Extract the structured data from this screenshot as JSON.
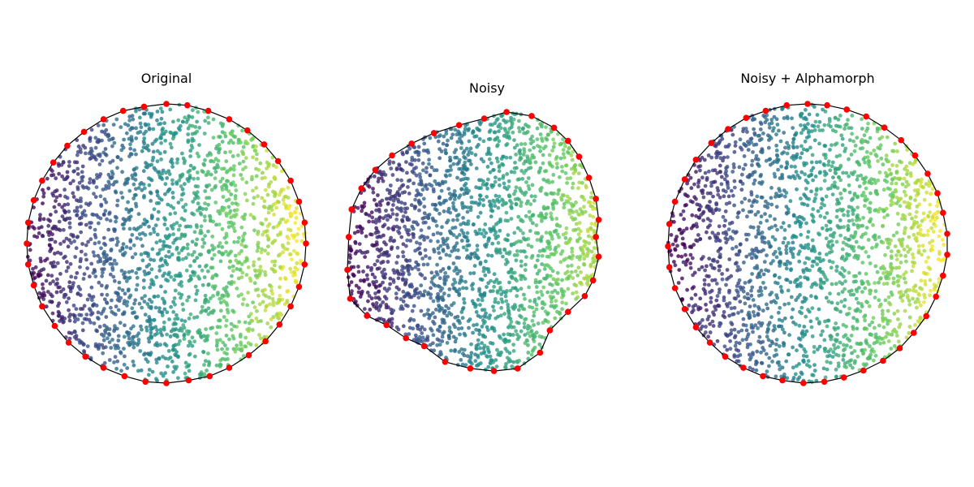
{
  "figure": {
    "colormap": "viridis",
    "colormap_stops": [
      "#440154",
      "#3b528b",
      "#21918c",
      "#5ec962",
      "#fde725"
    ],
    "hull_color": "#000000",
    "vertex_color": "#ff0000",
    "background": "#ffffff"
  },
  "chart_data": [
    {
      "type": "scatter",
      "title": "Original",
      "axes_visible": false,
      "color_by": "x",
      "point_count": 2000,
      "x_range": [
        -1,
        1
      ],
      "y_range": [
        -1,
        1
      ],
      "shape": "disk",
      "boundary": "convex-hull polygon with red vertices",
      "hull_vertices": [
        [
          0.0,
          1.0
        ],
        [
          0.15,
          0.99
        ],
        [
          0.3,
          0.95
        ],
        [
          0.45,
          0.89
        ],
        [
          0.58,
          0.81
        ],
        [
          0.7,
          0.71
        ],
        [
          0.8,
          0.59
        ],
        [
          0.89,
          0.45
        ],
        [
          0.95,
          0.3
        ],
        [
          0.99,
          0.15
        ],
        [
          1.0,
          0.0
        ],
        [
          0.99,
          -0.15
        ],
        [
          0.95,
          -0.31
        ],
        [
          0.89,
          -0.45
        ],
        [
          0.81,
          -0.58
        ],
        [
          0.71,
          -0.7
        ],
        [
          0.59,
          -0.8
        ],
        [
          0.45,
          -0.89
        ],
        [
          0.31,
          -0.95
        ],
        [
          0.16,
          -0.98
        ],
        [
          0.0,
          -1.0
        ],
        [
          -0.15,
          -0.99
        ],
        [
          -0.3,
          -0.95
        ],
        [
          -0.45,
          -0.89
        ],
        [
          -0.58,
          -0.81
        ],
        [
          -0.7,
          -0.71
        ],
        [
          -0.8,
          -0.59
        ],
        [
          -0.89,
          -0.45
        ],
        [
          -0.95,
          -0.3
        ],
        [
          -0.99,
          -0.15
        ],
        [
          -1.0,
          0.0
        ],
        [
          -0.99,
          0.15
        ],
        [
          -0.95,
          0.31
        ],
        [
          -0.89,
          0.45
        ],
        [
          -0.81,
          0.58
        ],
        [
          -0.71,
          0.7
        ],
        [
          -0.59,
          0.8
        ],
        [
          -0.45,
          0.89
        ],
        [
          -0.31,
          0.95
        ],
        [
          -0.16,
          0.98
        ]
      ]
    },
    {
      "type": "scatter",
      "title": "Noisy",
      "axes_visible": false,
      "color_by": "x",
      "point_count": 2000,
      "x_range": [
        -1,
        1
      ],
      "y_range": [
        -1,
        1
      ],
      "shape": "distorted disk",
      "boundary": "convex-hull polygon with red vertices",
      "hull_vertices": [
        [
          0.14,
          1.0
        ],
        [
          0.32,
          0.97
        ],
        [
          0.48,
          0.88
        ],
        [
          0.58,
          0.78
        ],
        [
          0.66,
          0.66
        ],
        [
          0.73,
          0.5
        ],
        [
          0.78,
          0.34
        ],
        [
          0.8,
          0.18
        ],
        [
          0.78,
          0.05
        ],
        [
          0.8,
          -0.1
        ],
        [
          0.76,
          -0.28
        ],
        [
          0.7,
          -0.4
        ],
        [
          0.58,
          -0.52
        ],
        [
          0.45,
          -0.66
        ],
        [
          0.38,
          -0.83
        ],
        [
          0.22,
          -0.95
        ],
        [
          0.05,
          -0.97
        ],
        [
          -0.12,
          -0.95
        ],
        [
          -0.3,
          -0.9
        ],
        [
          -0.45,
          -0.78
        ],
        [
          -0.58,
          -0.72
        ],
        [
          -0.72,
          -0.62
        ],
        [
          -0.86,
          -0.55
        ],
        [
          -0.98,
          -0.42
        ],
        [
          -1.0,
          -0.2
        ],
        [
          -0.99,
          0.05
        ],
        [
          -0.97,
          0.26
        ],
        [
          -0.9,
          0.42
        ],
        [
          -0.8,
          0.56
        ],
        [
          -0.68,
          0.67
        ],
        [
          -0.54,
          0.76
        ],
        [
          -0.38,
          0.84
        ],
        [
          -0.2,
          0.9
        ],
        [
          -0.02,
          0.95
        ]
      ]
    },
    {
      "type": "scatter",
      "title": "Noisy + Alphamorph",
      "axes_visible": false,
      "color_by": "x",
      "point_count": 2000,
      "x_range": [
        -1,
        1
      ],
      "y_range": [
        -1,
        1
      ],
      "shape": "disk",
      "boundary": "convex-hull polygon with red vertices",
      "hull_vertices": [
        [
          0.0,
          1.0
        ],
        [
          0.14,
          0.99
        ],
        [
          0.28,
          0.96
        ],
        [
          0.42,
          0.91
        ],
        [
          0.55,
          0.83
        ],
        [
          0.67,
          0.74
        ],
        [
          0.77,
          0.63
        ],
        [
          0.86,
          0.5
        ],
        [
          0.93,
          0.36
        ],
        [
          0.97,
          0.22
        ],
        [
          1.0,
          0.07
        ],
        [
          1.0,
          -0.08
        ],
        [
          0.97,
          -0.23
        ],
        [
          0.92,
          -0.38
        ],
        [
          0.85,
          -0.52
        ],
        [
          0.76,
          -0.64
        ],
        [
          0.66,
          -0.75
        ],
        [
          0.54,
          -0.84
        ],
        [
          0.4,
          -0.91
        ],
        [
          0.26,
          -0.96
        ],
        [
          0.12,
          -0.99
        ],
        [
          -0.03,
          -1.0
        ],
        [
          -0.18,
          -0.98
        ],
        [
          -0.32,
          -0.95
        ],
        [
          -0.46,
          -0.89
        ],
        [
          -0.59,
          -0.81
        ],
        [
          -0.7,
          -0.71
        ],
        [
          -0.8,
          -0.6
        ],
        [
          -0.88,
          -0.47
        ],
        [
          -0.95,
          -0.32
        ],
        [
          -0.99,
          -0.17
        ],
        [
          -1.0,
          -0.02
        ],
        [
          -0.99,
          0.14
        ],
        [
          -0.95,
          0.3
        ],
        [
          -0.88,
          0.46
        ],
        [
          -0.8,
          0.6
        ],
        [
          -0.69,
          0.72
        ],
        [
          -0.57,
          0.82
        ],
        [
          -0.44,
          0.9
        ],
        [
          -0.3,
          0.95
        ],
        [
          -0.15,
          0.99
        ]
      ]
    }
  ]
}
